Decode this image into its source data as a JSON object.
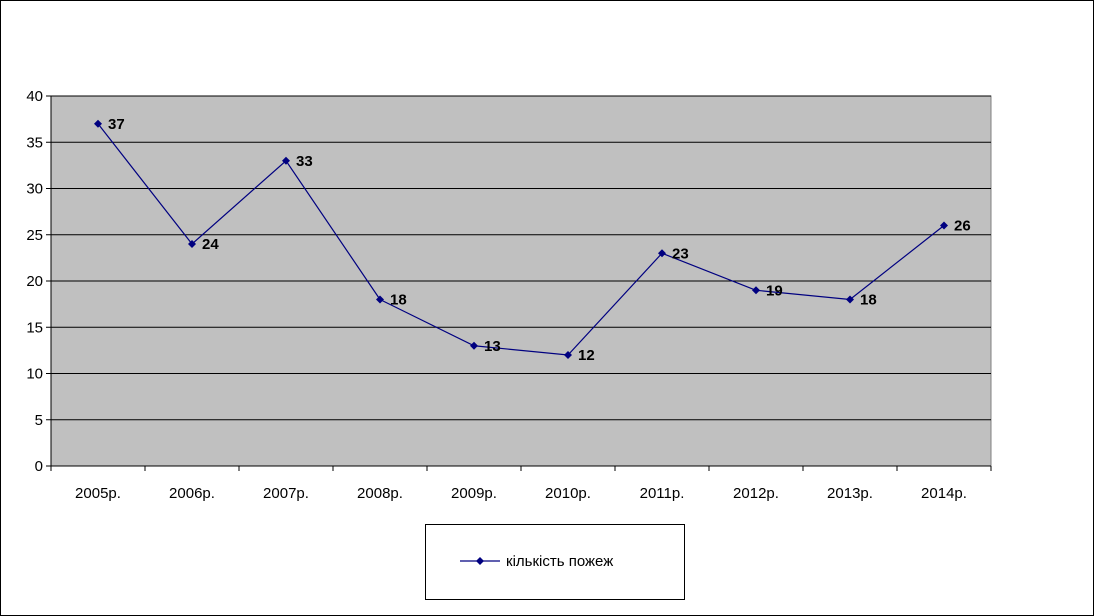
{
  "chart_data": {
    "type": "line",
    "title": "",
    "xlabel": "",
    "ylabel": "",
    "categories": [
      "2005р.",
      "2006р.",
      "2007р.",
      "2008р.",
      "2009р.",
      "2010р.",
      "2011р.",
      "2012р.",
      "2013р.",
      "2014р."
    ],
    "series": [
      {
        "name": "кількість пожеж",
        "values": [
          37,
          24,
          33,
          18,
          13,
          12,
          23,
          19,
          18,
          26
        ],
        "color": "#000080"
      }
    ],
    "ylim": [
      0,
      40
    ],
    "yticks": [
      "0",
      "5",
      "10",
      "15",
      "20",
      "25",
      "30",
      "35",
      "40"
    ],
    "data_labels": [
      "37",
      "24",
      "33",
      "18",
      "13",
      "12",
      "23",
      "19",
      "18",
      "26"
    ],
    "grid": true,
    "legend_position": "bottom",
    "plot_background": "#c0c0c0"
  },
  "legend": {
    "label": "кількість пожеж"
  }
}
